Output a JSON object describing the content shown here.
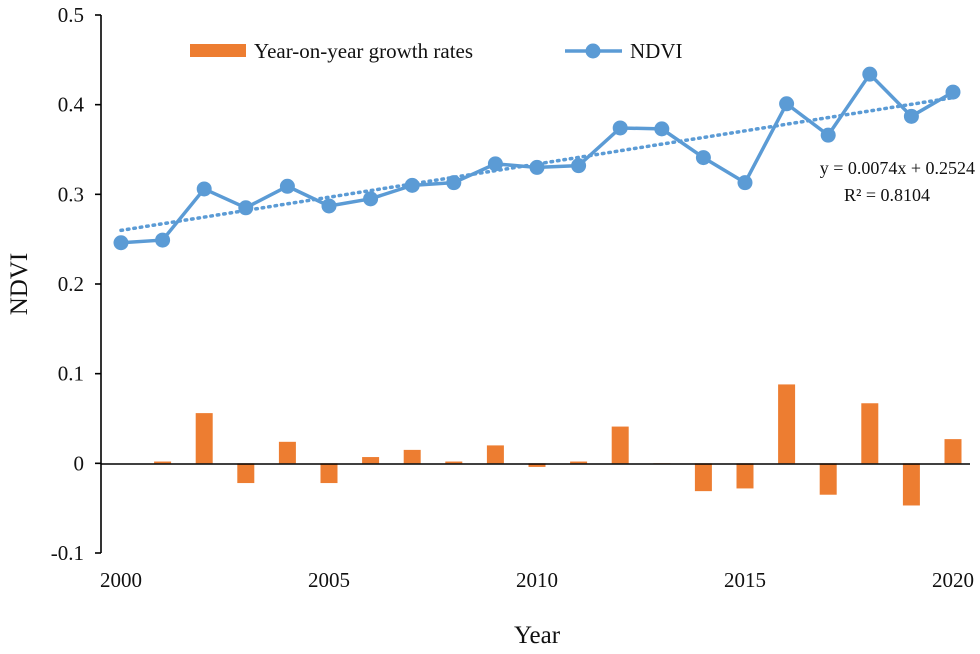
{
  "chart_data": {
    "type": "bar+line",
    "title": "",
    "xlabel": "Year",
    "ylabel": "NDVI",
    "x": [
      2000,
      2001,
      2002,
      2003,
      2004,
      2005,
      2006,
      2007,
      2008,
      2009,
      2010,
      2011,
      2012,
      2013,
      2014,
      2015,
      2016,
      2017,
      2018,
      2019,
      2020
    ],
    "xlim": [
      2000,
      2020
    ],
    "ylim": [
      -0.1,
      0.5
    ],
    "xticks": [
      2000,
      2005,
      2010,
      2015,
      2020
    ],
    "xtick_labels": [
      "2000",
      "2005",
      "2010",
      "2015",
      "2020"
    ],
    "yticks": [
      -0.1,
      0,
      0.1,
      0.2,
      0.3,
      0.4,
      0.5
    ],
    "ytick_labels": [
      "-0.1",
      "0",
      "0.1",
      "0.2",
      "0.3",
      "0.4",
      "0.5"
    ],
    "grid": false,
    "legend_position": "top",
    "series": [
      {
        "name": "Year-on-year growth rates",
        "kind": "bar",
        "color": "#ED7D31",
        "values": [
          null,
          0.002,
          0.056,
          -0.022,
          0.024,
          -0.022,
          0.007,
          0.015,
          0.002,
          0.02,
          -0.004,
          0.002,
          0.041,
          -0.001,
          -0.031,
          -0.028,
          0.088,
          -0.035,
          0.067,
          -0.047,
          0.027
        ]
      },
      {
        "name": "NDVI",
        "kind": "line",
        "color": "#5B9BD5",
        "values": [
          0.246,
          0.249,
          0.306,
          0.285,
          0.309,
          0.287,
          0.295,
          0.31,
          0.313,
          0.334,
          0.33,
          0.332,
          0.374,
          0.373,
          0.341,
          0.313,
          0.401,
          0.366,
          0.434,
          0.387,
          0.414
        ]
      }
    ],
    "trendline": {
      "series": "NDVI",
      "slope": 0.0074,
      "intercept": 0.2524,
      "equation": "y = 0.0074x + 0.2524",
      "r_squared": "R² = 0.8104",
      "style": "dotted",
      "color": "#5B9BD5"
    }
  }
}
